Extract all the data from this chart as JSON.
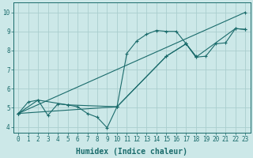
{
  "background_color": "#cce8e8",
  "grid_color": "#aacece",
  "line_color": "#1a6b6b",
  "xlabel": "Humidex (Indice chaleur)",
  "xlabel_fontsize": 7,
  "tick_fontsize": 5.5,
  "ylim": [
    3.7,
    10.5
  ],
  "xlim": [
    -0.5,
    23.5
  ],
  "yticks": [
    4,
    5,
    6,
    7,
    8,
    9,
    10
  ],
  "xticks": [
    0,
    1,
    2,
    3,
    4,
    5,
    6,
    7,
    8,
    9,
    10,
    11,
    12,
    13,
    14,
    15,
    16,
    17,
    18,
    19,
    20,
    21,
    22,
    23
  ],
  "series": [
    {
      "x": [
        0,
        1,
        2,
        3,
        4,
        5,
        6,
        7,
        8,
        9,
        10,
        11,
        12,
        13,
        14,
        15,
        16,
        17,
        18
      ],
      "y": [
        4.7,
        5.3,
        5.4,
        4.6,
        5.2,
        5.15,
        5.05,
        4.7,
        4.5,
        3.95,
        5.05,
        7.85,
        8.5,
        8.85,
        9.05,
        9.0,
        9.0,
        8.35,
        7.7
      ]
    },
    {
      "x": [
        0,
        2,
        5,
        10,
        15,
        17,
        18,
        19,
        20,
        21,
        22,
        23
      ],
      "y": [
        4.7,
        5.4,
        5.15,
        5.05,
        7.7,
        8.35,
        7.65,
        7.7,
        8.35,
        8.4,
        9.15,
        9.1
      ]
    },
    {
      "x": [
        0,
        23
      ],
      "y": [
        4.7,
        10.0
      ]
    },
    {
      "x": [
        0,
        10,
        15,
        17,
        18,
        22,
        23
      ],
      "y": [
        4.7,
        5.05,
        7.7,
        8.35,
        7.65,
        9.15,
        9.1
      ]
    }
  ]
}
